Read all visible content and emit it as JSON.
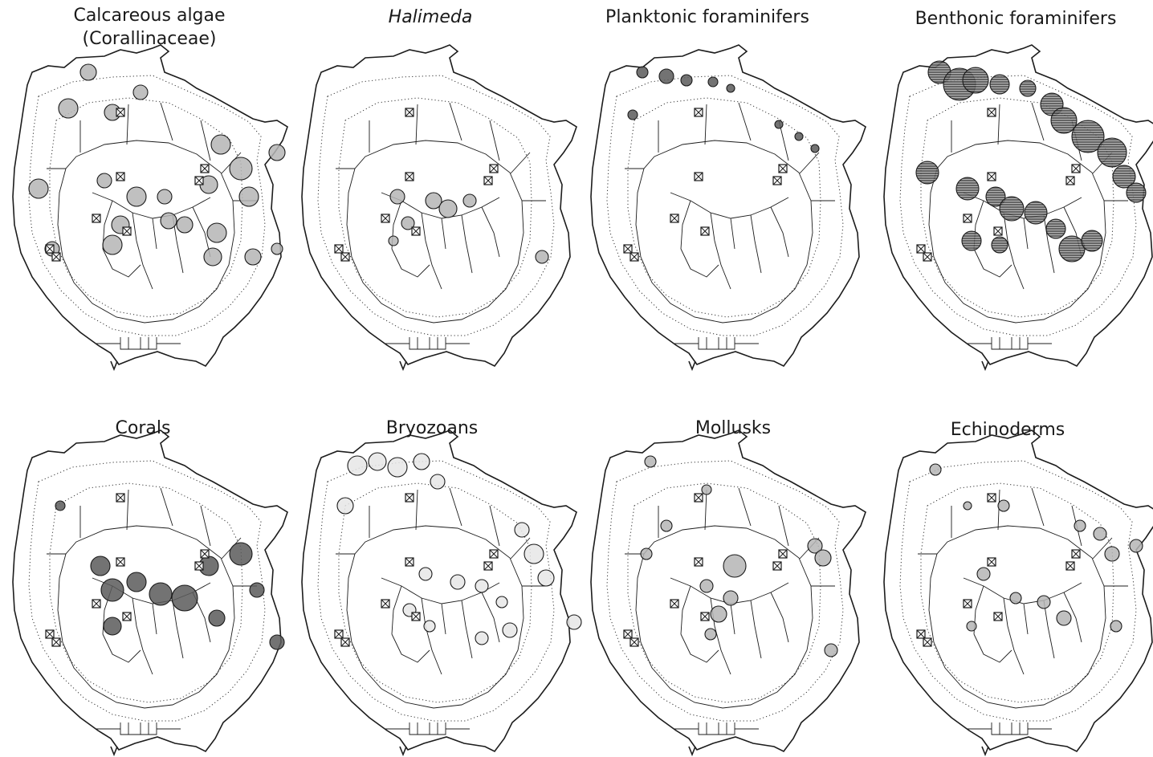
{
  "panels": [
    {
      "id": "calcareous-algae",
      "title_lines": [
        "Calcareous algae",
        "(Corallinaceae)"
      ],
      "italic": false,
      "legend_pattern": "gray-stipple"
    },
    {
      "id": "halimeda",
      "title_lines": [
        "Halimeda"
      ],
      "italic": true,
      "legend_pattern": "gray-stipple"
    },
    {
      "id": "planktonic-foraminifers",
      "title_lines": [
        "Planktonic foraminifers"
      ],
      "italic": false,
      "legend_pattern": "dark-stipple"
    },
    {
      "id": "benthonic-foraminifers",
      "title_lines": [
        "Benthonic foraminifers"
      ],
      "italic": false,
      "legend_pattern": "dark-hatched"
    },
    {
      "id": "corals",
      "title_lines": [
        "Corals"
      ],
      "italic": false,
      "legend_pattern": "dark-stipple"
    },
    {
      "id": "bryozoans",
      "title_lines": [
        "Bryozoans"
      ],
      "italic": false,
      "legend_pattern": "light-stipple"
    },
    {
      "id": "mollusks",
      "title_lines": [
        "Mollusks"
      ],
      "italic": false,
      "legend_pattern": "gray-stipple"
    },
    {
      "id": "echinoderms",
      "title_lines": [
        "Echinoderms"
      ],
      "italic": false,
      "legend_pattern": "gray-stipple"
    }
  ],
  "colors": {
    "outline": "#1c1c1c",
    "light": "#e6e6e6",
    "gray": "#b5b5b5",
    "dark": "#5a5a5a",
    "hatched": "#3a3a3a"
  }
}
